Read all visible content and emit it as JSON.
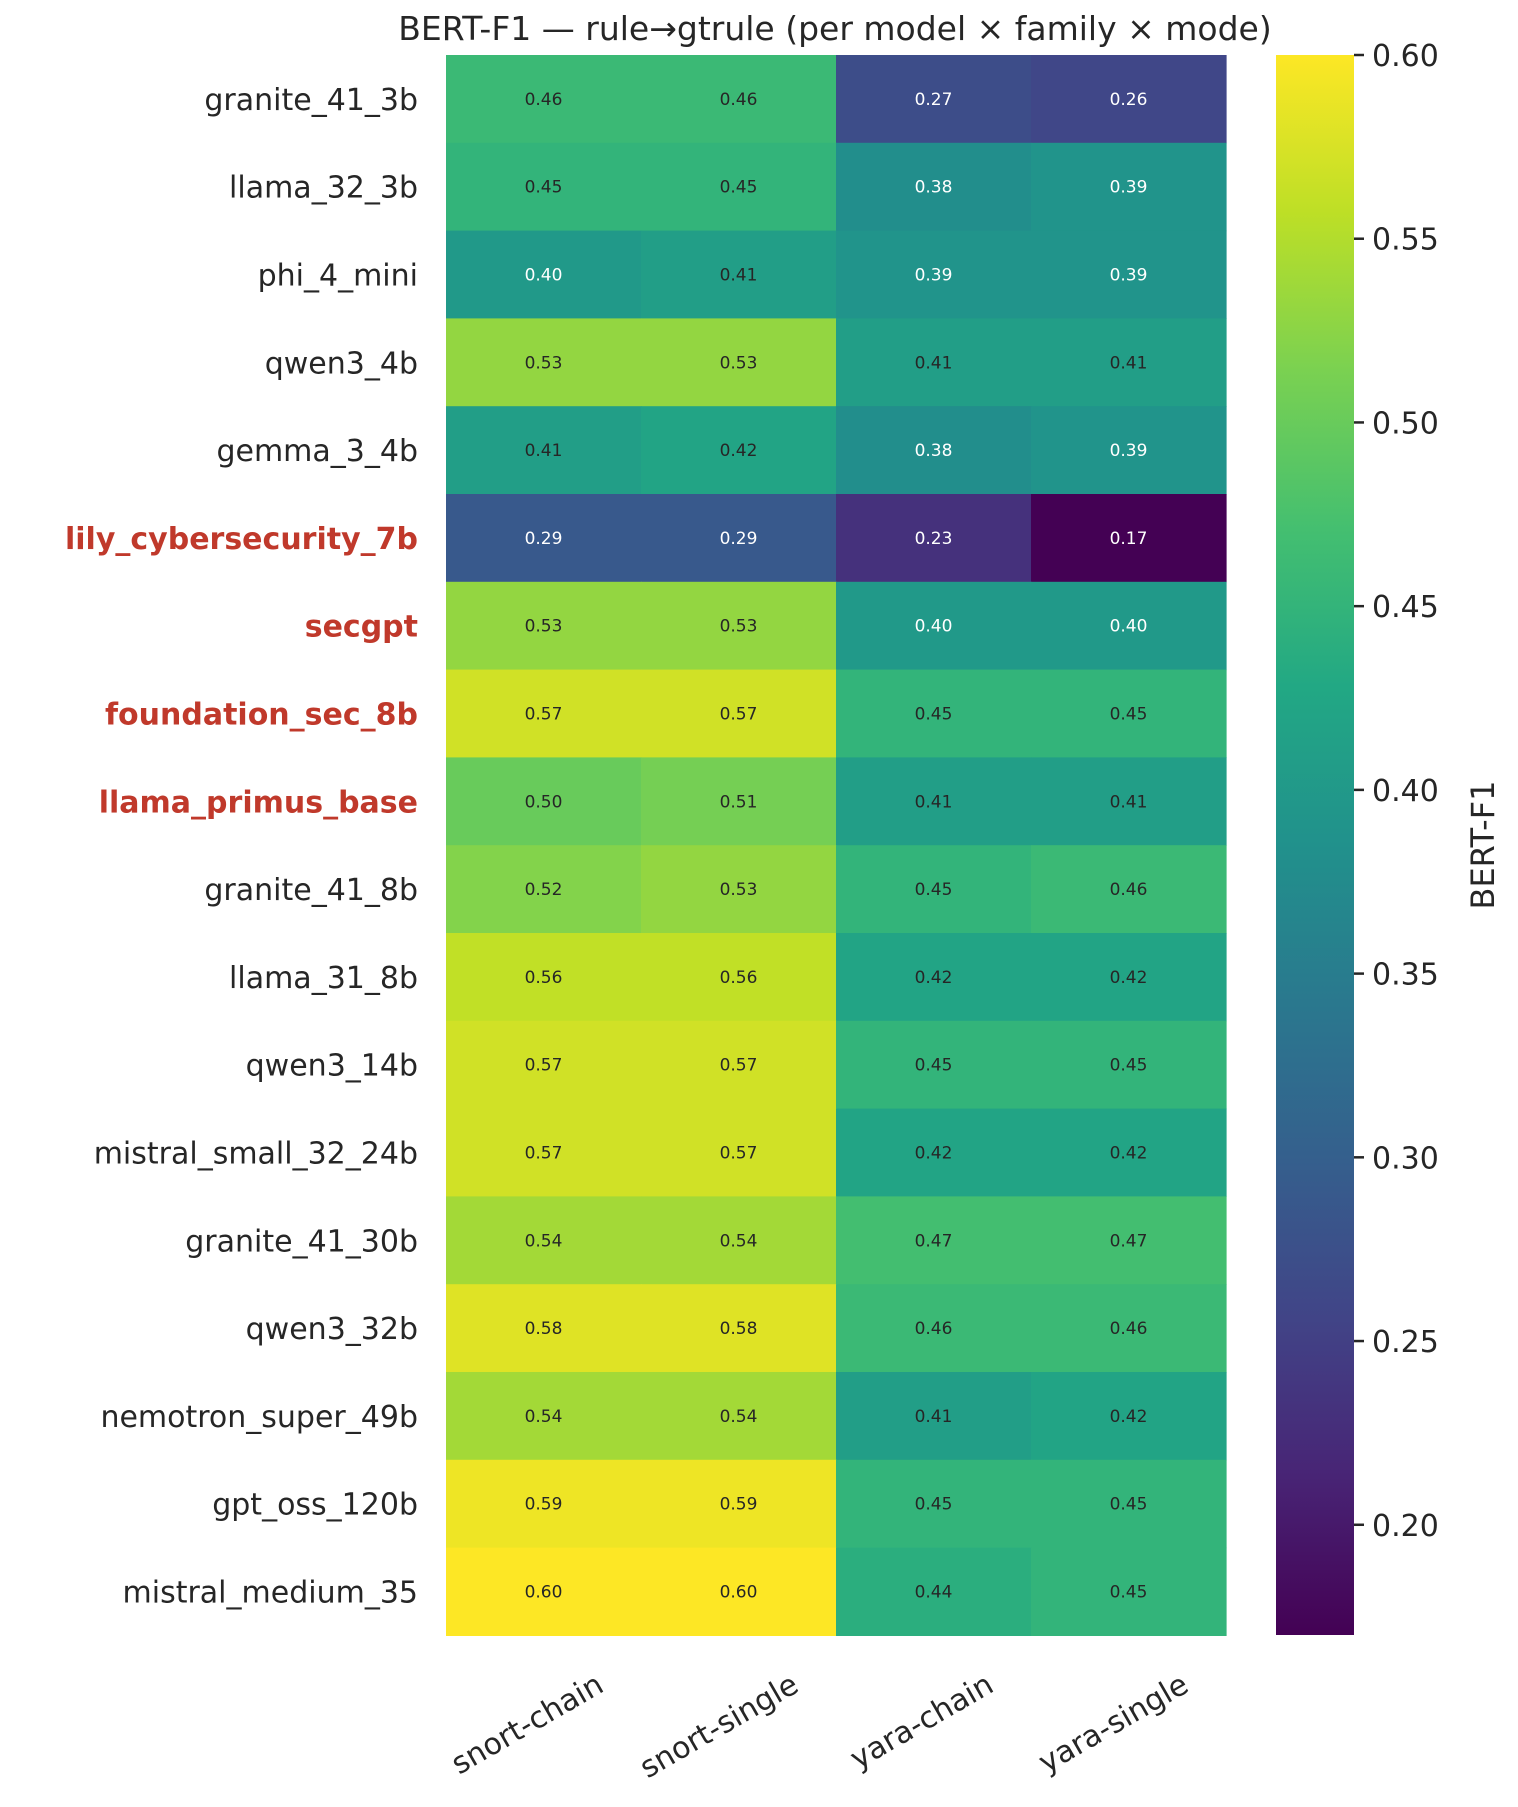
{
  "chart_data": {
    "type": "heatmap",
    "title": "BERT-F1  —  rule→gtrule  (per model × family × mode)",
    "columns": [
      "snort-chain",
      "snort-single",
      "yara-chain",
      "yara-single"
    ],
    "rows": [
      {
        "label": "granite_41_3b",
        "highlight": false,
        "values": [
          0.46,
          0.46,
          0.27,
          0.26
        ]
      },
      {
        "label": "llama_32_3b",
        "highlight": false,
        "values": [
          0.45,
          0.45,
          0.38,
          0.39
        ]
      },
      {
        "label": "phi_4_mini",
        "highlight": false,
        "values": [
          0.4,
          0.41,
          0.39,
          0.39
        ]
      },
      {
        "label": "qwen3_4b",
        "highlight": false,
        "values": [
          0.53,
          0.53,
          0.41,
          0.41
        ]
      },
      {
        "label": "gemma_3_4b",
        "highlight": false,
        "values": [
          0.41,
          0.42,
          0.38,
          0.39
        ]
      },
      {
        "label": "lily_cybersecurity_7b",
        "highlight": true,
        "values": [
          0.29,
          0.29,
          0.23,
          0.17
        ]
      },
      {
        "label": "secgpt",
        "highlight": true,
        "values": [
          0.53,
          0.53,
          0.4,
          0.4
        ]
      },
      {
        "label": "foundation_sec_8b",
        "highlight": true,
        "values": [
          0.57,
          0.57,
          0.45,
          0.45
        ]
      },
      {
        "label": "llama_primus_base",
        "highlight": true,
        "values": [
          0.5,
          0.51,
          0.41,
          0.41
        ]
      },
      {
        "label": "granite_41_8b",
        "highlight": false,
        "values": [
          0.52,
          0.53,
          0.45,
          0.46
        ]
      },
      {
        "label": "llama_31_8b",
        "highlight": false,
        "values": [
          0.56,
          0.56,
          0.42,
          0.42
        ]
      },
      {
        "label": "qwen3_14b",
        "highlight": false,
        "values": [
          0.57,
          0.57,
          0.45,
          0.45
        ]
      },
      {
        "label": "mistral_small_32_24b",
        "highlight": false,
        "values": [
          0.57,
          0.57,
          0.42,
          0.42
        ]
      },
      {
        "label": "granite_41_30b",
        "highlight": false,
        "values": [
          0.54,
          0.54,
          0.47,
          0.47
        ]
      },
      {
        "label": "qwen3_32b",
        "highlight": false,
        "values": [
          0.58,
          0.58,
          0.46,
          0.46
        ]
      },
      {
        "label": "nemotron_super_49b",
        "highlight": false,
        "values": [
          0.54,
          0.54,
          0.41,
          0.42
        ]
      },
      {
        "label": "gpt_oss_120b",
        "highlight": false,
        "values": [
          0.59,
          0.59,
          0.45,
          0.45
        ]
      },
      {
        "label": "mistral_medium_35",
        "highlight": false,
        "values": [
          0.6,
          0.6,
          0.44,
          0.45
        ]
      }
    ],
    "colormap": "viridis",
    "vmin": 0.17,
    "vmax": 0.6,
    "colorbar": {
      "label": "BERT-F1",
      "ticks": [
        0.2,
        0.25,
        0.3,
        0.35,
        0.4,
        0.45,
        0.5,
        0.55,
        0.6
      ],
      "tick_labels": [
        "0.20",
        "0.25",
        "0.30",
        "0.35",
        "0.40",
        "0.45",
        "0.50",
        "0.55",
        "0.60"
      ]
    },
    "highlight_color": "#c0392b"
  }
}
